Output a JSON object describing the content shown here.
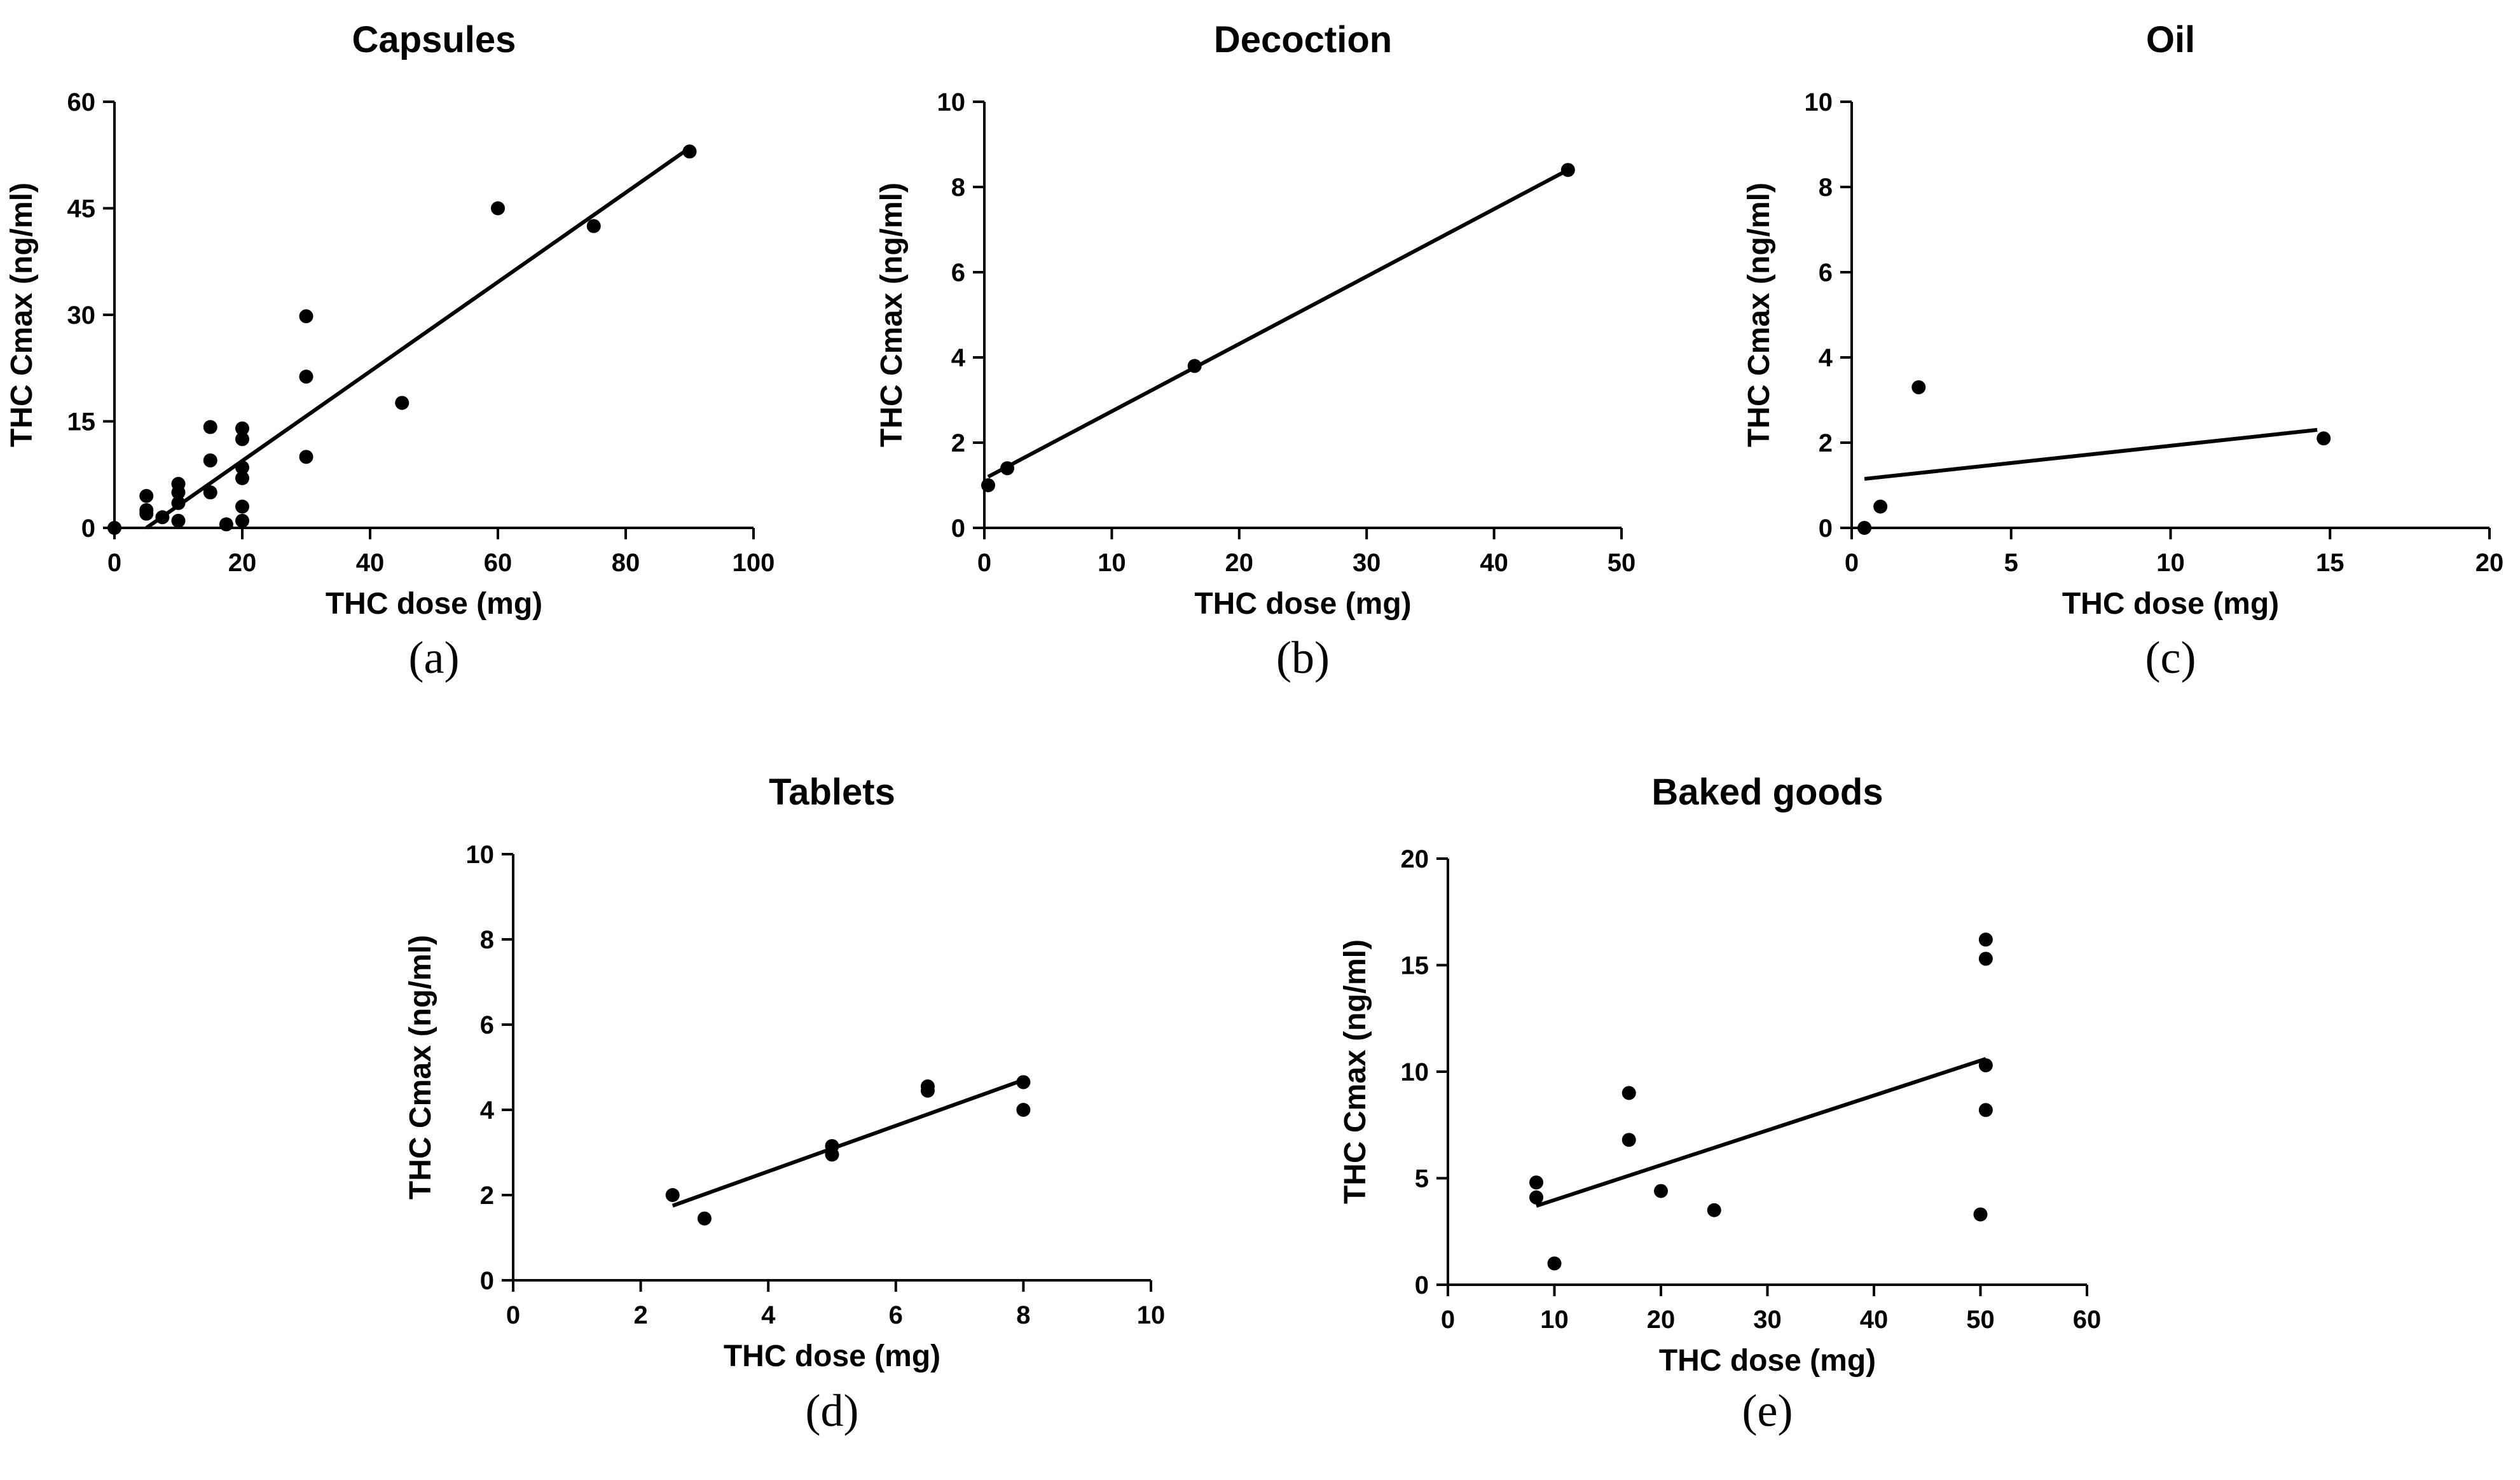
{
  "chart_data": [
    {
      "id": "a",
      "type": "scatter",
      "title": "Capsules",
      "panel_label": "(a)",
      "xlabel": "THC dose (mg)",
      "ylabel": "THC Cmax (ng/ml)",
      "xlim": [
        0,
        100
      ],
      "ylim": [
        0,
        60
      ],
      "xticks": [
        0,
        20,
        40,
        60,
        80,
        100
      ],
      "yticks": [
        0,
        15,
        30,
        45,
        60
      ],
      "points": [
        [
          0,
          0
        ],
        [
          5,
          4.5
        ],
        [
          5,
          2.5
        ],
        [
          5,
          2
        ],
        [
          7.5,
          1.5
        ],
        [
          10,
          6.2
        ],
        [
          10,
          5
        ],
        [
          10,
          3.5
        ],
        [
          10,
          1
        ],
        [
          15,
          14.2
        ],
        [
          15,
          9.5
        ],
        [
          15,
          5
        ],
        [
          17.5,
          0.5
        ],
        [
          20,
          14
        ],
        [
          20,
          12.5
        ],
        [
          20,
          8.5
        ],
        [
          20,
          7
        ],
        [
          20,
          3
        ],
        [
          20,
          1
        ],
        [
          30,
          29.8
        ],
        [
          30,
          21.3
        ],
        [
          30,
          10
        ],
        [
          45,
          17.6
        ],
        [
          60,
          45
        ],
        [
          75,
          42.5
        ],
        [
          90,
          53
        ]
      ],
      "fit": [
        [
          5,
          0
        ],
        [
          90,
          53.5
        ]
      ]
    },
    {
      "id": "b",
      "type": "scatter",
      "title": "Decoction",
      "panel_label": "(b)",
      "xlabel": "THC dose (mg)",
      "ylabel": "THC Cmax (ng/ml)",
      "xlim": [
        0,
        50
      ],
      "ylim": [
        0,
        10
      ],
      "xticks": [
        0,
        10,
        20,
        30,
        40,
        50
      ],
      "yticks": [
        0,
        2,
        4,
        6,
        8,
        10
      ],
      "points": [
        [
          0.3,
          1
        ],
        [
          1.8,
          1.4
        ],
        [
          16.5,
          3.8
        ],
        [
          45.8,
          8.4
        ]
      ],
      "fit": [
        [
          0.3,
          1.2
        ],
        [
          45.8,
          8.4
        ]
      ]
    },
    {
      "id": "c",
      "type": "scatter",
      "title": "Oil",
      "panel_label": "(c)",
      "xlabel": "THC dose (mg)",
      "ylabel": "THC Cmax (ng/ml)",
      "xlim": [
        0,
        20
      ],
      "ylim": [
        0,
        10
      ],
      "xticks": [
        0,
        5,
        10,
        15,
        20
      ],
      "yticks": [
        0,
        2,
        4,
        6,
        8,
        10
      ],
      "points": [
        [
          0.4,
          0
        ],
        [
          0.9,
          0.5
        ],
        [
          2.1,
          3.3
        ],
        [
          14.8,
          2.1
        ]
      ],
      "fit": [
        [
          0.4,
          1.15
        ],
        [
          14.6,
          2.3
        ]
      ]
    },
    {
      "id": "d",
      "type": "scatter",
      "title": "Tablets",
      "panel_label": "(d)",
      "xlabel": "THC dose (mg)",
      "ylabel": "THC Cmax (ng/ml)",
      "xlim": [
        0,
        10
      ],
      "ylim": [
        0,
        10
      ],
      "xticks": [
        0,
        2,
        4,
        6,
        8,
        10
      ],
      "yticks": [
        0,
        2,
        4,
        6,
        8,
        10
      ],
      "points": [
        [
          2.5,
          2
        ],
        [
          3,
          1.45
        ],
        [
          5,
          3.15
        ],
        [
          5,
          2.95
        ],
        [
          6.5,
          4.55
        ],
        [
          6.5,
          4.45
        ],
        [
          8,
          4.65
        ],
        [
          8,
          4
        ]
      ],
      "fit": [
        [
          2.5,
          1.75
        ],
        [
          8,
          4.7
        ]
      ]
    },
    {
      "id": "e",
      "type": "scatter",
      "title": "Baked goods",
      "panel_label": "(e)",
      "xlabel": "THC dose (mg)",
      "ylabel": "THC Cmax (ng/ml)",
      "xlim": [
        0,
        60
      ],
      "ylim": [
        0,
        20
      ],
      "xticks": [
        0,
        10,
        20,
        30,
        40,
        50,
        60
      ],
      "yticks": [
        0,
        5,
        10,
        15,
        20
      ],
      "points": [
        [
          8.3,
          4.8
        ],
        [
          8.3,
          4.1
        ],
        [
          10,
          1
        ],
        [
          17,
          9
        ],
        [
          17,
          6.8
        ],
        [
          20,
          4.4
        ],
        [
          25,
          3.5
        ],
        [
          50,
          3.3
        ],
        [
          50.5,
          16.2
        ],
        [
          50.5,
          15.3
        ],
        [
          50.5,
          10.3
        ],
        [
          50.5,
          8.2
        ]
      ],
      "fit": [
        [
          8.3,
          3.7
        ],
        [
          50.5,
          10.6
        ]
      ]
    }
  ]
}
